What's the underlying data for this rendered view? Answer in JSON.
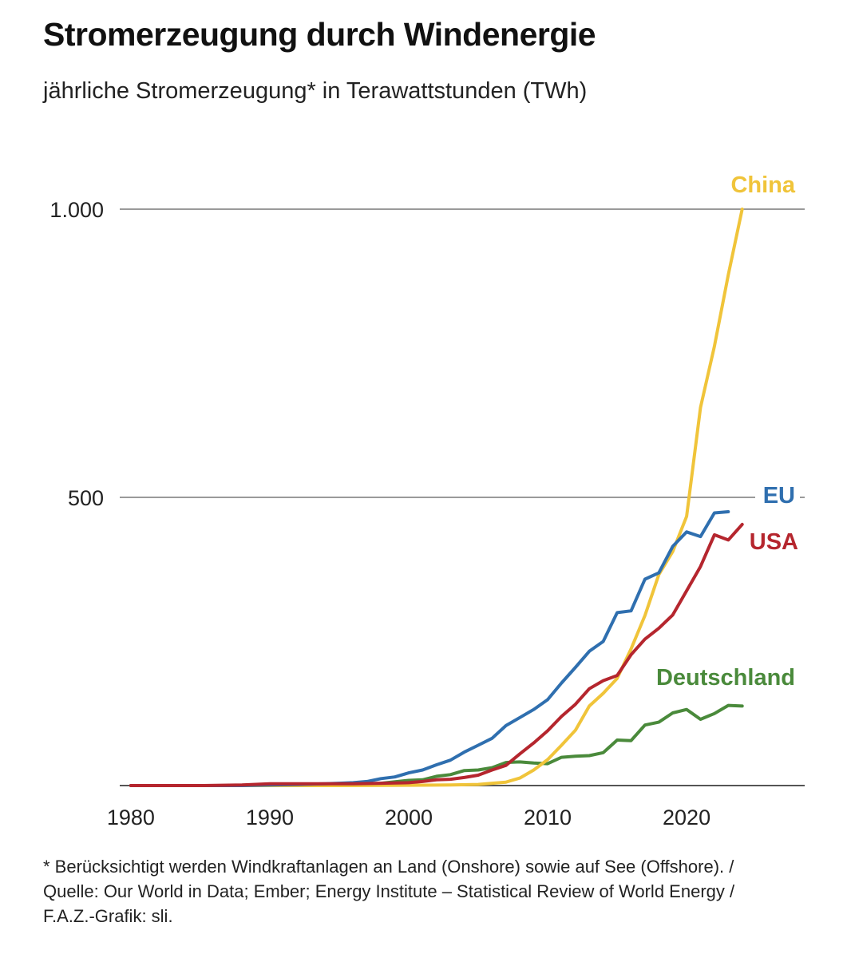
{
  "chart_data": {
    "type": "line",
    "title": "Stromerzeugung durch Windenergie",
    "subtitle": "jährliche Stromerzeugung* in Terawattstunden (TWh)",
    "xlabel": "",
    "ylabel": "",
    "xlim": [
      1979,
      2028
    ],
    "ylim": [
      0,
      1000
    ],
    "x_ticks": [
      1980,
      1990,
      2000,
      2010,
      2020
    ],
    "y_ticks": [
      {
        "value": 0,
        "label": ""
      },
      {
        "value": 500,
        "label": "500"
      },
      {
        "value": 1000,
        "label": "1.000"
      }
    ],
    "series": [
      {
        "name": "China",
        "color": "#f0c43a",
        "x": [
          1980,
          1985,
          1990,
          1995,
          2000,
          2003,
          2005,
          2006,
          2007,
          2008,
          2009,
          2010,
          2011,
          2012,
          2013,
          2014,
          2015,
          2016,
          2017,
          2018,
          2019,
          2020,
          2021,
          2022,
          2023,
          2024
        ],
        "y": [
          0,
          0,
          0,
          0,
          0.6,
          1,
          2,
          4,
          6,
          13,
          27,
          45,
          70,
          96,
          138,
          160,
          186,
          237,
          295,
          366,
          406,
          467,
          656,
          762,
          886,
          1000
        ]
      },
      {
        "name": "EU",
        "color": "#2f6faf",
        "x": [
          1980,
          1985,
          1988,
          1990,
          1992,
          1994,
          1995,
          1996,
          1997,
          1998,
          1999,
          2000,
          2001,
          2002,
          2003,
          2004,
          2005,
          2006,
          2007,
          2008,
          2009,
          2010,
          2011,
          2012,
          2013,
          2014,
          2015,
          2016,
          2017,
          2018,
          2019,
          2020,
          2021,
          2022,
          2023
        ],
        "y": [
          0,
          0,
          0,
          1,
          2,
          3,
          4,
          5,
          7,
          12,
          15,
          22,
          27,
          36,
          44,
          58,
          70,
          82,
          104,
          118,
          132,
          149,
          178,
          205,
          233,
          250,
          300,
          303,
          358,
          369,
          415,
          440,
          432,
          473,
          475
        ]
      },
      {
        "name": "USA",
        "color": "#b5262e",
        "x": [
          1980,
          1985,
          1988,
          1990,
          1992,
          1994,
          1996,
          1998,
          2000,
          2001,
          2002,
          2003,
          2004,
          2005,
          2006,
          2007,
          2008,
          2009,
          2010,
          2011,
          2012,
          2013,
          2014,
          2015,
          2016,
          2017,
          2018,
          2019,
          2020,
          2021,
          2022,
          2023,
          2024
        ],
        "y": [
          0,
          0,
          1,
          3,
          3,
          3,
          3,
          4,
          5,
          7,
          10,
          11,
          14,
          18,
          27,
          35,
          55,
          74,
          95,
          120,
          141,
          168,
          182,
          191,
          227,
          254,
          273,
          296,
          338,
          380,
          435,
          426,
          453
        ]
      },
      {
        "name": "Deutschland",
        "color": "#4a8a3b",
        "x": [
          1980,
          1990,
          1992,
          1994,
          1996,
          1998,
          2000,
          2001,
          2002,
          2003,
          2004,
          2005,
          2006,
          2007,
          2008,
          2009,
          2010,
          2011,
          2012,
          2013,
          2014,
          2015,
          2016,
          2017,
          2018,
          2019,
          2020,
          2021,
          2022,
          2023,
          2024
        ],
        "y": [
          0,
          0,
          0.3,
          1,
          2,
          4,
          9,
          10,
          16,
          19,
          26,
          27,
          31,
          40,
          41,
          39,
          38,
          49,
          51,
          52,
          57,
          79,
          78,
          105,
          110,
          126,
          132,
          115,
          125,
          139,
          138
        ]
      }
    ],
    "legend_labels": [
      "China",
      "EU",
      "USA",
      "Deutschland"
    ]
  },
  "footnote": "* Berücksichtigt werden Windkraftanlagen an Land (Onshore) sowie auf See (Offshore). / Quelle: Our World in Data; Ember; Energy Institute – Statistical Review of World Energy / F.A.Z.-Grafik: sli."
}
